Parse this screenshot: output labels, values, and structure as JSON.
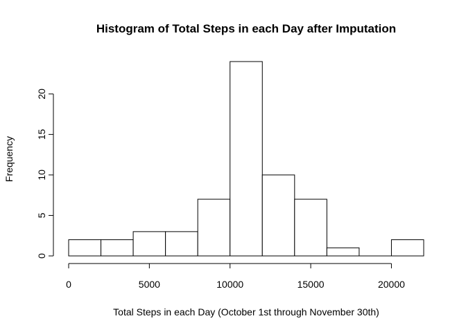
{
  "chart_data": {
    "type": "bar",
    "title": "Histogram of Total Steps in each Day after Imputation",
    "xlabel": "Total Steps in each Day (October 1st through November 30th)",
    "ylabel": "Frequency",
    "bins": [
      {
        "start": 0,
        "end": 2000,
        "count": 2
      },
      {
        "start": 2000,
        "end": 4000,
        "count": 2
      },
      {
        "start": 4000,
        "end": 6000,
        "count": 3
      },
      {
        "start": 6000,
        "end": 8000,
        "count": 3
      },
      {
        "start": 8000,
        "end": 10000,
        "count": 7
      },
      {
        "start": 10000,
        "end": 12000,
        "count": 24
      },
      {
        "start": 12000,
        "end": 14000,
        "count": 10
      },
      {
        "start": 14000,
        "end": 16000,
        "count": 7
      },
      {
        "start": 16000,
        "end": 18000,
        "count": 1
      },
      {
        "start": 18000,
        "end": 20000,
        "count": 0
      },
      {
        "start": 20000,
        "end": 22000,
        "count": 2
      }
    ],
    "xlim": [
      0,
      22000
    ],
    "ylim": [
      0,
      24
    ],
    "xticks": [
      0,
      5000,
      10000,
      15000,
      20000
    ],
    "yticks": [
      0,
      5,
      10,
      15,
      20
    ],
    "xtick_labels": [
      "0",
      "5000",
      "10000",
      "15000",
      "20000"
    ],
    "ytick_labels": [
      "0",
      "5",
      "10",
      "15",
      "20"
    ],
    "grid": false,
    "colors": {
      "bar_fill": "#ffffff",
      "bar_stroke": "#000000"
    }
  }
}
